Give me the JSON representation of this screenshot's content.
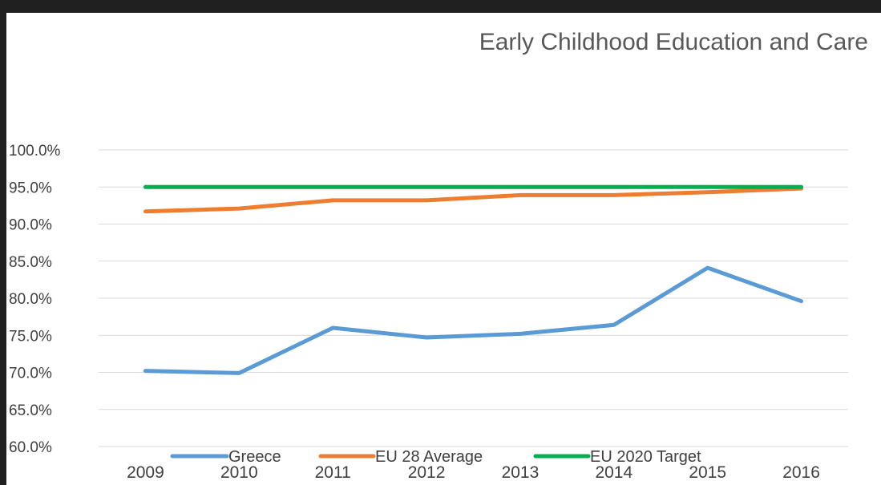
{
  "chart_data": {
    "type": "line",
    "title": "Early Childhood Education and Care",
    "xlabel": "",
    "ylabel": "",
    "categories": [
      "2009",
      "2010",
      "2011",
      "2012",
      "2013",
      "2014",
      "2015",
      "2016"
    ],
    "ylim": [
      60,
      100
    ],
    "yticks": [
      "60.0%",
      "65.0%",
      "70.0%",
      "75.0%",
      "80.0%",
      "85.0%",
      "90.0%",
      "95.0%",
      "100.0%"
    ],
    "grid": true,
    "legend_position": "bottom",
    "series": [
      {
        "name": "Greece",
        "color": "#5B9BD5",
        "values": [
          70.2,
          69.9,
          76.0,
          74.7,
          75.2,
          76.4,
          84.1,
          79.6
        ]
      },
      {
        "name": "EU 28 Average",
        "color": "#ED7D31",
        "values": [
          91.7,
          92.1,
          93.2,
          93.2,
          93.9,
          93.9,
          94.3,
          94.8
        ]
      },
      {
        "name": "EU 2020 Target",
        "color": "#00B050",
        "values": [
          95.0,
          95.0,
          95.0,
          95.0,
          95.0,
          95.0,
          95.0,
          95.0
        ]
      }
    ]
  }
}
